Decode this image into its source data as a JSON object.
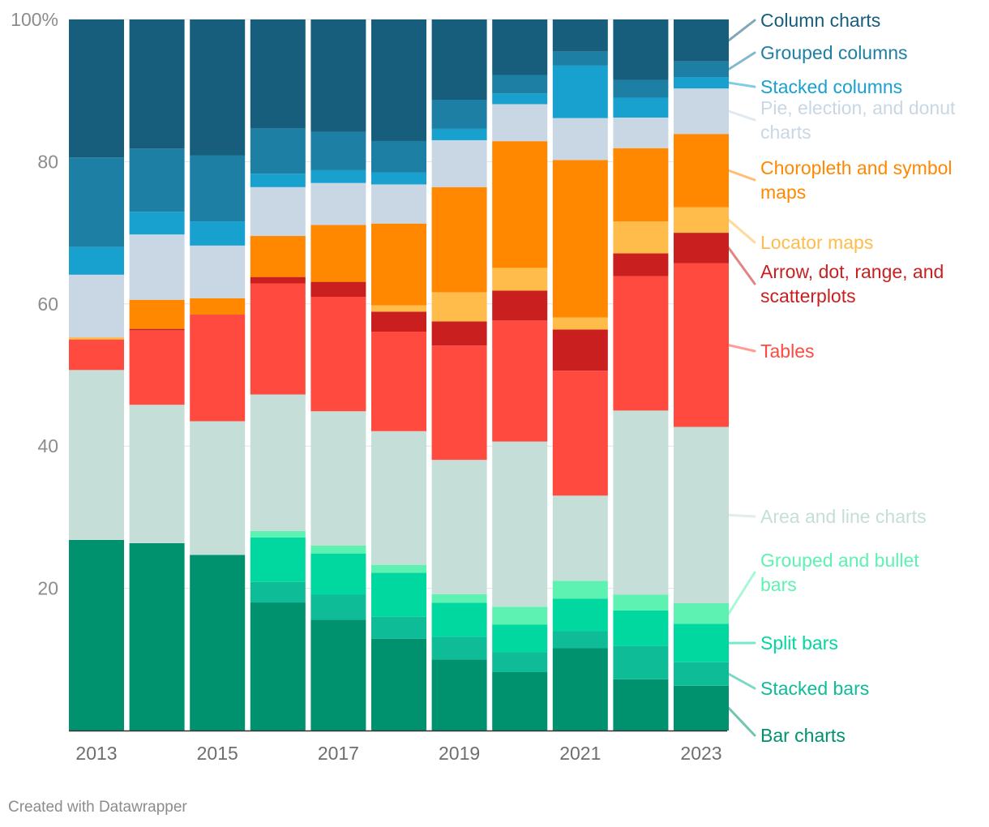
{
  "chart_data": {
    "type": "bar",
    "stacked": true,
    "normalized": true,
    "categories": [
      "2013",
      "2014",
      "2015",
      "2016",
      "2017",
      "2018",
      "2019",
      "2020",
      "2021",
      "2022",
      "2023"
    ],
    "x_tick_labels": [
      "2013",
      "2015",
      "2017",
      "2019",
      "2021",
      "2023"
    ],
    "y_tick_labels": [
      "100%",
      "80",
      "60",
      "40",
      "20"
    ],
    "y_ticks": [
      100,
      80,
      60,
      40,
      20
    ],
    "ylim": [
      0,
      100
    ],
    "grid": true,
    "legend_placement": "right",
    "series": [
      {
        "name": "Bar charts",
        "label_lines": [
          "Bar charts"
        ],
        "color": "#00916f",
        "values": [
          26.8,
          26.4,
          24.7,
          18.1,
          15.6,
          12.9,
          10.0,
          8.2,
          11.6,
          7.2,
          6.3
        ]
      },
      {
        "name": "Stacked bars",
        "label_lines": [
          "Stacked bars"
        ],
        "color": "#0ebc97",
        "values": [
          0.0,
          0.0,
          0.0,
          2.9,
          3.5,
          3.1,
          3.2,
          2.8,
          2.4,
          4.7,
          3.3
        ]
      },
      {
        "name": "Split bars",
        "label_lines": [
          "Split bars"
        ],
        "color": "#00d8a0",
        "values": [
          0.0,
          0.0,
          0.0,
          6.3,
          5.8,
          6.2,
          4.8,
          3.9,
          4.6,
          5.0,
          5.4
        ]
      },
      {
        "name": "Grouped and bullet bars",
        "label_lines": [
          "Grouped and bullet",
          "bars"
        ],
        "color": "#5ef2b2",
        "values": [
          0.0,
          0.0,
          0.0,
          0.9,
          1.1,
          1.1,
          1.2,
          2.5,
          2.5,
          2.2,
          2.9
        ]
      },
      {
        "name": "Area and line charts",
        "label_lines": [
          "Area and line charts"
        ],
        "color": "#c6ded8",
        "values": [
          23.9,
          19.5,
          18.8,
          19.3,
          18.9,
          18.8,
          18.9,
          23.2,
          12.0,
          25.9,
          24.8
        ]
      },
      {
        "name": "Tables",
        "label_lines": [
          "Tables"
        ],
        "color": "#ff4a3f",
        "values": [
          4.3,
          10.5,
          15.0,
          15.7,
          16.1,
          14.0,
          16.1,
          17.0,
          17.6,
          18.9,
          23.0
        ]
      },
      {
        "name": "Arrow, dot, range, and scatterplots",
        "label_lines": [
          "Arrow, dot, range, and",
          "scatterplots"
        ],
        "color": "#c91f1f",
        "values": [
          0.0,
          0.2,
          0.0,
          0.9,
          2.1,
          2.8,
          3.4,
          4.2,
          5.8,
          3.2,
          4.3
        ]
      },
      {
        "name": "Locator maps",
        "label_lines": [
          "Locator maps"
        ],
        "color": "#ffbc4a",
        "values": [
          0.3,
          0.0,
          0.0,
          0.0,
          0.0,
          0.9,
          4.1,
          3.2,
          1.7,
          4.5,
          3.6
        ]
      },
      {
        "name": "Choropleth and symbol maps",
        "label_lines": [
          "Choropleth and symbol",
          "maps"
        ],
        "color": "#ff8800",
        "values": [
          0.0,
          4.1,
          2.3,
          5.8,
          8.0,
          11.5,
          14.8,
          17.8,
          22.2,
          10.3,
          10.3
        ]
      },
      {
        "name": "Pie, election, and donut charts",
        "label_lines": [
          "Pie, election, and donut",
          "charts"
        ],
        "color": "#c9d7e4",
        "values": [
          8.8,
          9.2,
          7.4,
          6.9,
          5.9,
          5.5,
          6.6,
          5.2,
          5.9,
          4.3,
          6.4
        ]
      },
      {
        "name": "Stacked columns",
        "label_lines": [
          "Stacked columns"
        ],
        "color": "#18a1cf",
        "values": [
          3.9,
          3.2,
          3.4,
          1.9,
          1.8,
          1.7,
          1.6,
          1.5,
          7.4,
          2.8,
          1.6
        ]
      },
      {
        "name": "Grouped columns",
        "label_lines": [
          "Grouped columns"
        ],
        "color": "#1c7fa3",
        "values": [
          12.6,
          8.9,
          9.3,
          6.4,
          5.4,
          4.4,
          4.1,
          2.6,
          2.0,
          2.5,
          2.2
        ]
      },
      {
        "name": "Column charts",
        "label_lines": [
          "Column charts"
        ],
        "color": "#165e7c",
        "values": [
          19.4,
          18.2,
          19.1,
          15.4,
          15.8,
          17.1,
          11.3,
          7.8,
          4.5,
          8.5,
          5.9
        ]
      }
    ]
  },
  "footer": {
    "credit": "Created with Datawrapper"
  }
}
